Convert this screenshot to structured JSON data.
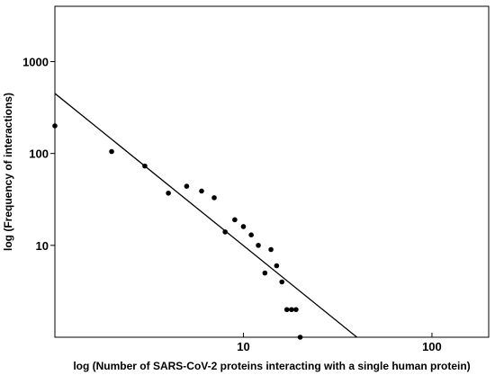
{
  "chart_data": {
    "type": "scatter",
    "title": "",
    "xlabel": "log (Number of SARS-CoV-2 proteins interacting with a single human protein)",
    "ylabel": "log (Frequency of interactions)",
    "x_scale": "log",
    "y_scale": "log",
    "xlim": [
      1,
      200
    ],
    "ylim": [
      1,
      4000
    ],
    "x_ticks": [
      {
        "value": 10,
        "label": "10"
      },
      {
        "value": 100,
        "label": "100"
      }
    ],
    "y_ticks": [
      {
        "value": 10,
        "label": "10"
      },
      {
        "value": 100,
        "label": "100"
      },
      {
        "value": 1000,
        "label": "1000"
      }
    ],
    "grid": false,
    "legend": "none",
    "series": [
      {
        "points": [
          {
            "x": 1,
            "y": 200
          },
          {
            "x": 2,
            "y": 105
          },
          {
            "x": 3,
            "y": 73
          },
          {
            "x": 4,
            "y": 37
          },
          {
            "x": 5,
            "y": 44
          },
          {
            "x": 6,
            "y": 39
          },
          {
            "x": 7,
            "y": 33
          },
          {
            "x": 8,
            "y": 14
          },
          {
            "x": 9,
            "y": 19
          },
          {
            "x": 10,
            "y": 16
          },
          {
            "x": 11,
            "y": 13
          },
          {
            "x": 12,
            "y": 10
          },
          {
            "x": 13,
            "y": 5
          },
          {
            "x": 14,
            "y": 9
          },
          {
            "x": 15,
            "y": 6
          },
          {
            "x": 16,
            "y": 4
          },
          {
            "x": 17,
            "y": 2
          },
          {
            "x": 18,
            "y": 2
          },
          {
            "x": 19,
            "y": 2
          },
          {
            "x": 20,
            "y": 1
          }
        ]
      }
    ],
    "trendline": {
      "points": [
        {
          "x": 1,
          "y": 450
        },
        {
          "x": 40,
          "y": 1
        }
      ]
    },
    "colors": {
      "points": "#000000",
      "line": "#000000",
      "axes": "#000000"
    }
  }
}
